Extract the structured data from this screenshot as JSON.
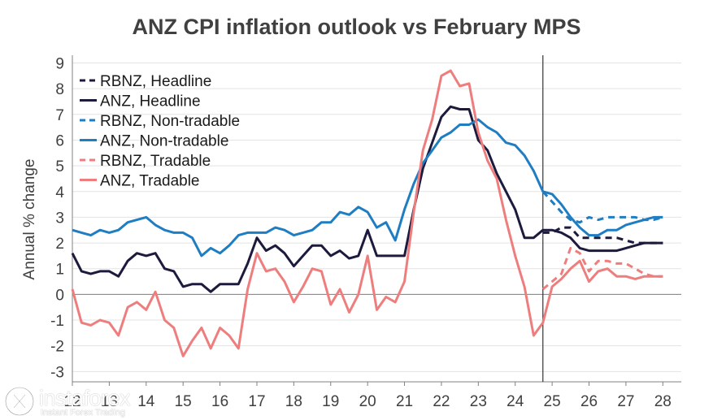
{
  "chart_data": {
    "type": "line",
    "title": "ANZ CPI inflation outlook vs February MPS",
    "ylabel": "Annual % change",
    "xlabel": "",
    "ylim": [
      -3.4,
      9.3
    ],
    "xlim": [
      12.0,
      28.5
    ],
    "yticks": [
      9,
      8,
      7,
      6,
      5,
      4,
      3,
      2,
      1,
      0,
      -1,
      -2,
      -3
    ],
    "xticks": [
      12,
      13,
      14,
      15,
      16,
      17,
      18,
      19,
      20,
      21,
      22,
      23,
      24,
      25,
      26,
      27,
      28
    ],
    "forecast_divider_x": 24.75,
    "series": [
      {
        "name": "RBNZ, Headline",
        "color": "#1c1a3d",
        "dash": true,
        "x": [
          24.75,
          25.0,
          25.25,
          25.5,
          25.75,
          26.0,
          26.25,
          26.5,
          26.75,
          27.0,
          27.25,
          27.5,
          27.75,
          28.0
        ],
        "y": [
          2.4,
          2.4,
          2.6,
          2.6,
          2.2,
          2.2,
          2.2,
          2.2,
          2.2,
          2.1,
          2.0,
          2.0,
          2.0,
          2.0
        ]
      },
      {
        "name": "ANZ, Headline",
        "color": "#1c1a3d",
        "dash": false,
        "x": [
          12.0,
          12.25,
          12.5,
          12.75,
          13.0,
          13.25,
          13.5,
          13.75,
          14.0,
          14.25,
          14.5,
          14.75,
          15.0,
          15.25,
          15.5,
          15.75,
          16.0,
          16.25,
          16.5,
          16.75,
          17.0,
          17.25,
          17.5,
          17.75,
          18.0,
          18.25,
          18.5,
          18.75,
          19.0,
          19.25,
          19.5,
          19.75,
          20.0,
          20.25,
          20.5,
          20.75,
          21.0,
          21.25,
          21.5,
          21.75,
          22.0,
          22.25,
          22.5,
          22.75,
          23.0,
          23.25,
          23.5,
          23.75,
          24.0,
          24.25,
          24.5,
          24.75,
          25.0,
          25.25,
          25.5,
          25.75,
          26.0,
          26.25,
          26.5,
          26.75,
          27.0,
          27.25,
          27.5,
          27.75,
          28.0
        ],
        "y": [
          1.6,
          0.9,
          0.8,
          0.9,
          0.9,
          0.7,
          1.3,
          1.6,
          1.5,
          1.6,
          1.0,
          0.9,
          0.3,
          0.4,
          0.4,
          0.1,
          0.4,
          0.4,
          0.4,
          1.2,
          2.2,
          1.7,
          1.9,
          1.6,
          1.1,
          1.5,
          1.9,
          1.9,
          1.5,
          1.7,
          1.4,
          1.5,
          2.5,
          1.5,
          1.5,
          1.5,
          1.5,
          3.3,
          4.9,
          5.9,
          6.9,
          7.3,
          7.2,
          7.2,
          6.0,
          5.6,
          4.7,
          4.0,
          3.3,
          2.2,
          2.2,
          2.5,
          2.5,
          2.4,
          2.2,
          1.8,
          1.7,
          1.7,
          1.7,
          1.7,
          1.8,
          1.9,
          2.0,
          2.0,
          2.0
        ]
      },
      {
        "name": "RBNZ, Non-tradable",
        "color": "#1f7dc2",
        "dash": true,
        "x": [
          24.75,
          25.0,
          25.25,
          25.5,
          25.75,
          26.0,
          26.25,
          26.5,
          26.75,
          27.0,
          27.25,
          27.5,
          27.75,
          28.0
        ],
        "y": [
          4.0,
          3.6,
          3.2,
          2.9,
          2.8,
          3.0,
          2.9,
          3.0,
          3.0,
          3.0,
          3.0,
          2.9,
          2.9,
          3.0
        ]
      },
      {
        "name": "ANZ, Non-tradable",
        "color": "#1f7dc2",
        "dash": false,
        "x": [
          12.0,
          12.25,
          12.5,
          12.75,
          13.0,
          13.25,
          13.5,
          13.75,
          14.0,
          14.25,
          14.5,
          14.75,
          15.0,
          15.25,
          15.5,
          15.75,
          16.0,
          16.25,
          16.5,
          16.75,
          17.0,
          17.25,
          17.5,
          17.75,
          18.0,
          18.25,
          18.5,
          18.75,
          19.0,
          19.25,
          19.5,
          19.75,
          20.0,
          20.25,
          20.5,
          20.75,
          21.0,
          21.25,
          21.5,
          21.75,
          22.0,
          22.25,
          22.5,
          22.75,
          23.0,
          23.25,
          23.5,
          23.75,
          24.0,
          24.25,
          24.5,
          24.75,
          25.0,
          25.25,
          25.5,
          25.75,
          26.0,
          26.25,
          26.5,
          26.75,
          27.0,
          27.25,
          27.5,
          27.75,
          28.0
        ],
        "y": [
          2.5,
          2.4,
          2.3,
          2.5,
          2.4,
          2.5,
          2.8,
          2.9,
          3.0,
          2.7,
          2.5,
          2.4,
          2.4,
          2.2,
          1.5,
          1.8,
          1.6,
          1.9,
          2.3,
          2.4,
          2.4,
          2.4,
          2.6,
          2.5,
          2.3,
          2.4,
          2.5,
          2.8,
          2.8,
          3.2,
          3.1,
          3.4,
          3.2,
          2.6,
          2.8,
          2.1,
          3.3,
          4.3,
          5.1,
          5.6,
          6.1,
          6.3,
          6.6,
          6.6,
          6.8,
          6.5,
          6.3,
          5.9,
          5.8,
          5.4,
          4.8,
          4.0,
          3.9,
          3.5,
          3.0,
          2.6,
          2.3,
          2.3,
          2.5,
          2.5,
          2.7,
          2.8,
          2.9,
          3.0,
          3.0
        ]
      },
      {
        "name": "RBNZ, Tradable",
        "color": "#ee7e7e",
        "dash": true,
        "x": [
          24.75,
          25.0,
          25.25,
          25.5,
          25.75,
          26.0,
          26.25,
          26.5,
          26.75,
          27.0,
          27.25,
          27.5,
          27.75,
          28.0
        ],
        "y": [
          0.2,
          0.5,
          0.8,
          1.8,
          1.6,
          0.9,
          1.3,
          1.3,
          1.2,
          1.2,
          1.0,
          0.8,
          0.7,
          0.7
        ]
      },
      {
        "name": "ANZ, Tradable",
        "color": "#ee7e7e",
        "dash": false,
        "x": [
          12.0,
          12.25,
          12.5,
          12.75,
          13.0,
          13.25,
          13.5,
          13.75,
          14.0,
          14.25,
          14.5,
          14.75,
          15.0,
          15.25,
          15.5,
          15.75,
          16.0,
          16.25,
          16.5,
          16.75,
          17.0,
          17.25,
          17.5,
          17.75,
          18.0,
          18.25,
          18.5,
          18.75,
          19.0,
          19.25,
          19.5,
          19.75,
          20.0,
          20.25,
          20.5,
          20.75,
          21.0,
          21.25,
          21.5,
          21.75,
          22.0,
          22.25,
          22.5,
          22.75,
          23.0,
          23.25,
          23.5,
          23.75,
          24.0,
          24.25,
          24.5,
          24.75,
          25.0,
          25.25,
          25.5,
          25.75,
          26.0,
          26.25,
          26.5,
          26.75,
          27.0,
          27.25,
          27.5,
          27.75,
          28.0
        ],
        "y": [
          0.2,
          -1.1,
          -1.2,
          -1.0,
          -1.1,
          -1.6,
          -0.5,
          -0.3,
          -0.6,
          0.1,
          -1.0,
          -1.3,
          -2.4,
          -1.8,
          -1.3,
          -2.1,
          -1.3,
          -1.6,
          -2.1,
          0.2,
          1.6,
          0.9,
          1.0,
          0.5,
          -0.3,
          0.3,
          1.0,
          0.9,
          -0.4,
          0.2,
          -0.7,
          0.0,
          1.5,
          -0.6,
          -0.1,
          -0.3,
          0.5,
          3.2,
          5.6,
          6.8,
          8.5,
          8.7,
          8.1,
          8.2,
          6.3,
          5.2,
          4.5,
          2.9,
          1.5,
          0.3,
          -1.6,
          -1.1,
          0.3,
          0.6,
          1.0,
          1.3,
          0.5,
          0.9,
          1.0,
          0.7,
          0.7,
          0.6,
          0.7,
          0.7,
          0.7
        ]
      }
    ]
  },
  "watermark": {
    "brand": "instaforex",
    "tagline": "Instant Forex Trading"
  }
}
